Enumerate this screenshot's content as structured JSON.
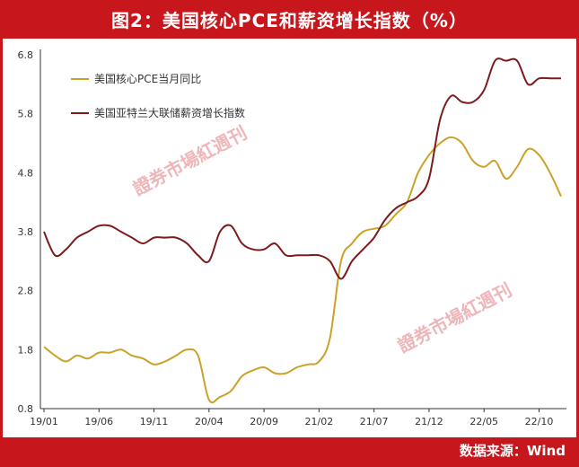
{
  "title": "图2：美国核心PCE和薪资增长指数（%）",
  "source": "数据来源：Wind",
  "watermark": "證券市場紅週刊",
  "colors": {
    "brand": "#c8161d",
    "pce": "#c9a227",
    "wage": "#7b1b1e"
  },
  "chart_data": {
    "type": "line",
    "title": "",
    "xlabel": "",
    "ylabel": "",
    "ylim": [
      0.8,
      6.8
    ],
    "yticks": [
      "0.8",
      "1.8",
      "2.8",
      "3.8",
      "4.8",
      "5.8",
      "6.8"
    ],
    "x": [
      "19/01",
      "19/02",
      "19/03",
      "19/04",
      "19/05",
      "19/06",
      "19/07",
      "19/08",
      "19/09",
      "19/10",
      "19/11",
      "19/12",
      "20/01",
      "20/02",
      "20/03",
      "20/04",
      "20/05",
      "20/06",
      "20/07",
      "20/08",
      "20/09",
      "20/10",
      "20/11",
      "20/12",
      "21/01",
      "21/02",
      "21/03",
      "21/04",
      "21/05",
      "21/06",
      "21/07",
      "21/08",
      "21/09",
      "21/10",
      "21/11",
      "21/12",
      "22/01",
      "22/02",
      "22/03",
      "22/04",
      "22/05",
      "22/06",
      "22/07",
      "22/08",
      "22/09",
      "22/10",
      "22/11",
      "22/12"
    ],
    "xticks": [
      "19/01",
      "19/06",
      "19/11",
      "20/04",
      "20/09",
      "21/02",
      "21/07",
      "21/12",
      "22/05",
      "22/10"
    ],
    "legend_position": "top-left",
    "grid": false,
    "series": [
      {
        "name": "美国核心PCE当月同比",
        "values": [
          1.85,
          1.7,
          1.6,
          1.7,
          1.65,
          1.75,
          1.75,
          1.8,
          1.7,
          1.65,
          1.55,
          1.6,
          1.7,
          1.8,
          1.7,
          0.95,
          1.0,
          1.1,
          1.35,
          1.45,
          1.5,
          1.4,
          1.4,
          1.5,
          1.55,
          1.6,
          2.0,
          3.3,
          3.6,
          3.8,
          3.85,
          3.9,
          4.1,
          4.3,
          4.8,
          5.1,
          5.3,
          5.4,
          5.3,
          5.0,
          4.9,
          5.0,
          4.7,
          4.9,
          5.2,
          5.1,
          4.8,
          4.4
        ]
      },
      {
        "name": "美国亚特兰大联储薪资增长指数",
        "values": [
          3.8,
          3.4,
          3.5,
          3.7,
          3.8,
          3.9,
          3.9,
          3.8,
          3.7,
          3.6,
          3.7,
          3.7,
          3.7,
          3.6,
          3.4,
          3.3,
          3.8,
          3.9,
          3.6,
          3.5,
          3.5,
          3.6,
          3.4,
          3.4,
          3.4,
          3.4,
          3.3,
          3.0,
          3.3,
          3.5,
          3.7,
          4.0,
          4.2,
          4.3,
          4.4,
          4.7,
          5.7,
          6.1,
          6.0,
          6.0,
          6.2,
          6.7,
          6.7,
          6.7,
          6.3,
          6.4,
          6.4,
          6.4
        ]
      }
    ]
  }
}
